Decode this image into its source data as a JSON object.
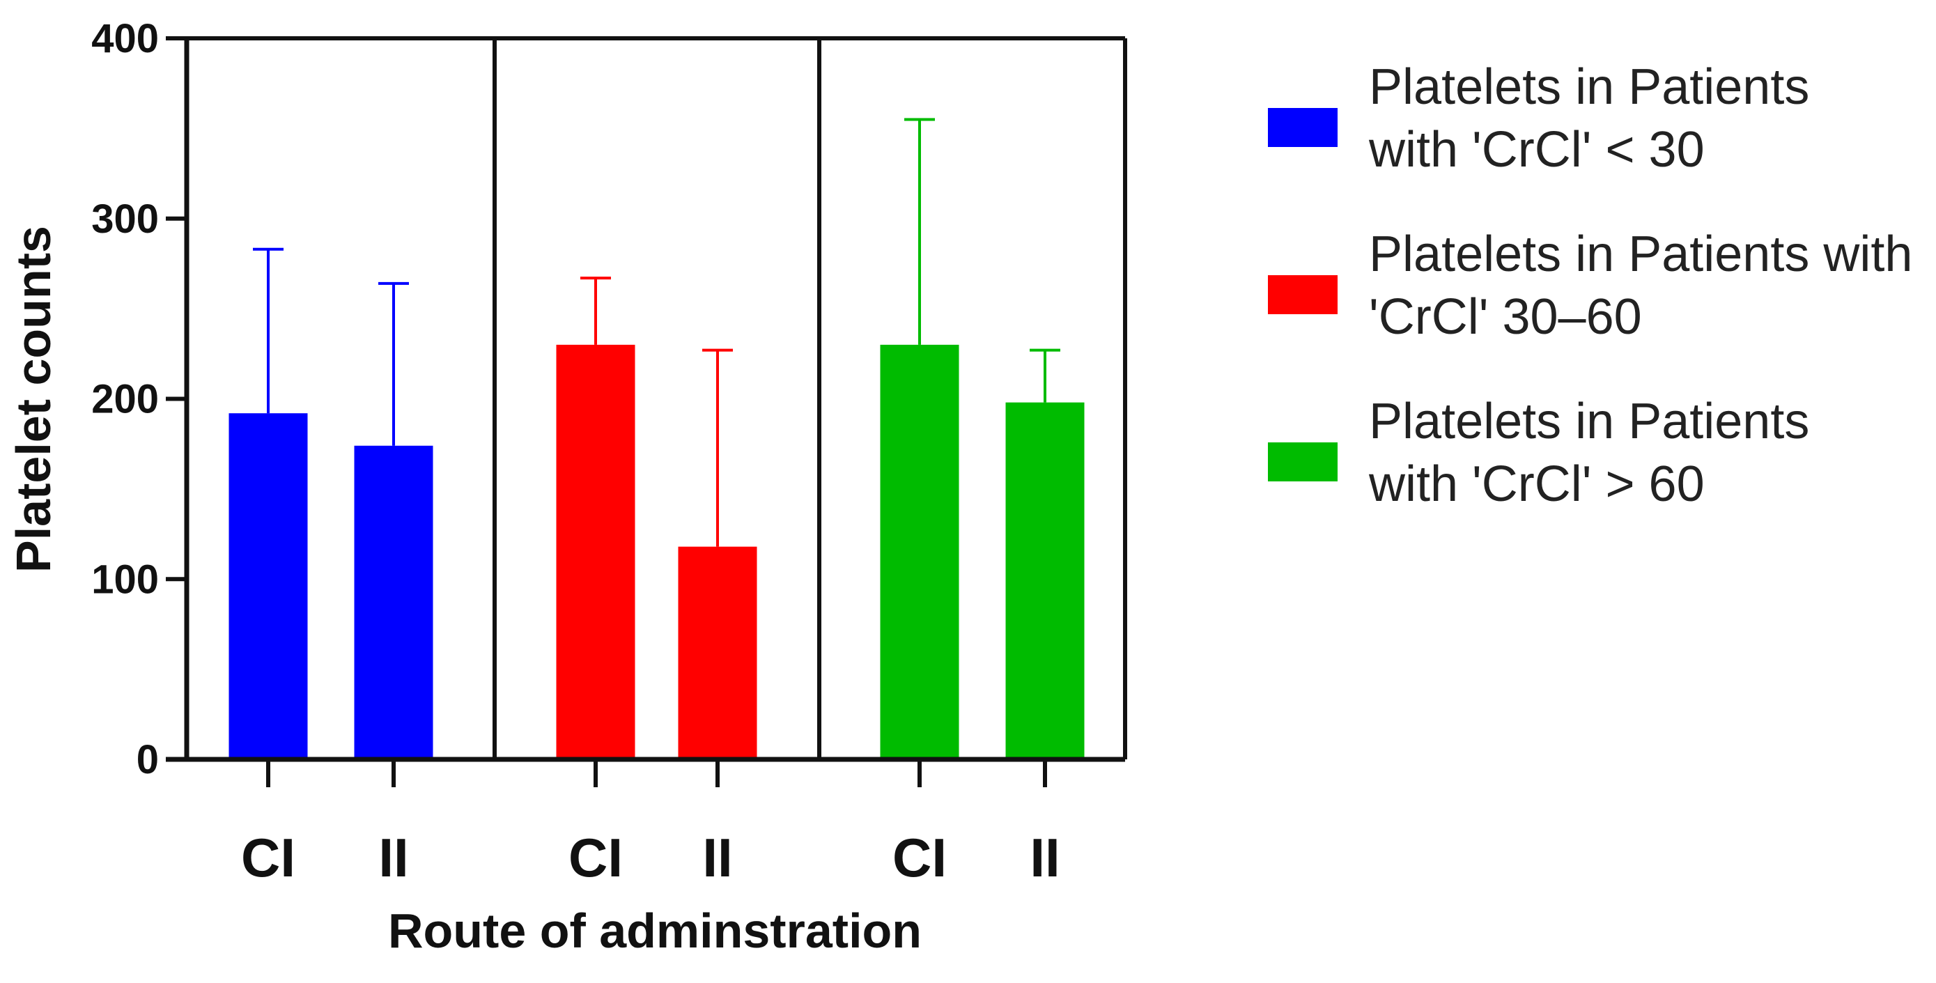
{
  "chart_data": {
    "type": "bar",
    "title": "",
    "xlabel": "Route of adminstration",
    "ylabel": "Platelet  counts",
    "ylim": [
      0,
      400
    ],
    "yticks": [
      "0",
      "100",
      "200",
      "300",
      "400"
    ],
    "grid": false,
    "legend_placement": "right",
    "groups": [
      {
        "series": "Platelets in Patients with 'CrCl' < 30",
        "color": "#0000ff",
        "bars": [
          {
            "category": "CI",
            "value": 192,
            "error_upper": 283
          },
          {
            "category": "II",
            "value": 174,
            "error_upper": 264
          }
        ]
      },
      {
        "series": "Platelets in Patients with 'CrCl' 30–60",
        "color": "#ff0000",
        "bars": [
          {
            "category": "CI",
            "value": 230,
            "error_upper": 267
          },
          {
            "category": "II",
            "value": 118,
            "error_upper": 227
          }
        ]
      },
      {
        "series": "Platelets in Patients with 'CrCl' > 60",
        "color": "#00bb00",
        "bars": [
          {
            "category": "CI",
            "value": 230,
            "error_upper": 355
          },
          {
            "category": "II",
            "value": 198,
            "error_upper": 227
          }
        ]
      }
    ]
  },
  "legend": [
    {
      "label_line1": "Platelets in Patients",
      "label_line2": "with 'CrCl' < 30",
      "color": "#0000ff"
    },
    {
      "label_line1": "Platelets in Patients with",
      "label_line2": "'CrCl' 30–60",
      "color": "#ff0000"
    },
    {
      "label_line1": "Platelets in Patients",
      "label_line2": "with 'CrCl' > 60",
      "color": "#00bb00"
    }
  ]
}
